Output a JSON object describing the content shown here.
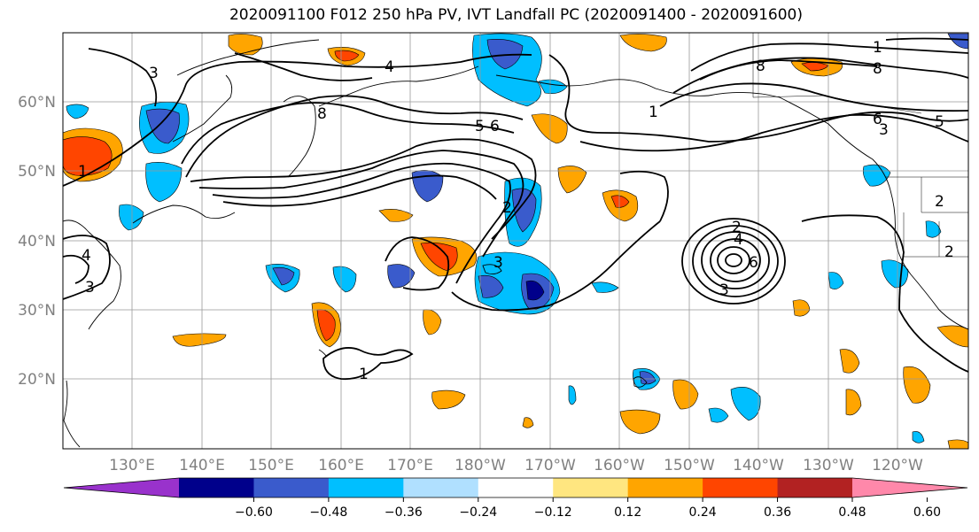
{
  "title": "2020091100 F012 250 hPa PV, IVT Landfall PC (2020091400 - 2020091600)",
  "lat_labels": [
    "20°N",
    "30°N",
    "40°N",
    "50°N",
    "60°N"
  ],
  "lon_labels": [
    "130°E",
    "140°E",
    "150°E",
    "160°E",
    "170°E",
    "180°W",
    "170°W",
    "160°W",
    "150°W",
    "140°W",
    "130°W",
    "120°W"
  ],
  "colorbar": {
    "ticks": [
      "−0.60",
      "−0.48",
      "−0.36",
      "−0.24",
      "−0.12",
      "0.12",
      "0.24",
      "0.36",
      "0.48",
      "0.60"
    ],
    "colors": [
      "#9932cc",
      "#00008b",
      "#3a5bcc",
      "#00bfff",
      "#b0e0ff",
      "#ffffff",
      "#ffe680",
      "#ffa500",
      "#ff4500",
      "#b22222",
      "#ff88aa"
    ]
  },
  "contour_labels": [
    "4",
    "8",
    "5",
    "6",
    "3",
    "1",
    "2",
    "1",
    "2",
    "4",
    "6",
    "3",
    "8",
    "1",
    "8",
    "6",
    "5",
    "3",
    "2",
    "2",
    "3",
    "4",
    "1",
    "3"
  ],
  "palette": {
    "gridline": "#999999",
    "coast": "#000000",
    "contour": "#000000"
  }
}
